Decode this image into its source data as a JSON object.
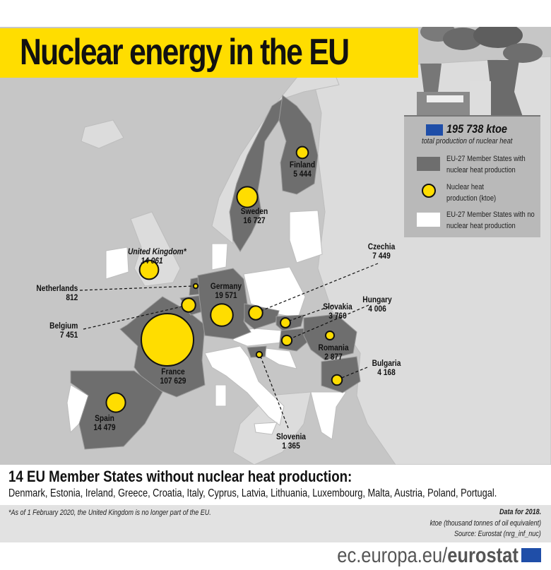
{
  "title": "Nuclear energy in the EU",
  "legend": {
    "total": "195 738 ktoe",
    "total_caption": "total production of nuclear heat",
    "items": [
      {
        "label": "EU-27 Member States with nuclear heat production",
        "color": "#6e6e6e"
      },
      {
        "label": "Nuclear heat production (ktoe)",
        "color": "#ffdd00"
      },
      {
        "label": "EU-27 Member States with no nuclear heat production",
        "color": "#ffffff"
      }
    ]
  },
  "countries": [
    {
      "name": "Finland",
      "value": "5 444",
      "ktoe": 5444
    },
    {
      "name": "Sweden",
      "value": "16 727",
      "ktoe": 16727
    },
    {
      "name": "United Kingdom*",
      "value": "14 061",
      "ktoe": 14061
    },
    {
      "name": "Netherlands",
      "value": "812",
      "ktoe": 812
    },
    {
      "name": "Belgium",
      "value": "7 451",
      "ktoe": 7451
    },
    {
      "name": "Germany",
      "value": "19 571",
      "ktoe": 19571
    },
    {
      "name": "Czechia",
      "value": "7 449",
      "ktoe": 7449
    },
    {
      "name": "Slovakia",
      "value": "3 760",
      "ktoe": 3760
    },
    {
      "name": "Hungary",
      "value": "4 006",
      "ktoe": 4006
    },
    {
      "name": "Romania",
      "value": "2 877",
      "ktoe": 2877
    },
    {
      "name": "Slovenia",
      "value": "1 365",
      "ktoe": 1365
    },
    {
      "name": "Bulgaria",
      "value": "4 168",
      "ktoe": 4168
    },
    {
      "name": "France",
      "value": "107 629",
      "ktoe": 107629
    },
    {
      "name": "Spain",
      "value": "14 479",
      "ktoe": 14479
    }
  ],
  "without": {
    "title": "14 EU Member States without nuclear heat production:",
    "list": "Denmark, Estonia, Ireland, Greece, Croatia, Italy, Cyprus, Latvia, Lithuania, Luxembourg, Malta, Austria, Poland, Portugal."
  },
  "notes": {
    "uk": "*As of 1 February 2020, the United Kingdom is no longer part of the EU.",
    "year": "Data for 2018.",
    "unit": "ktoe (thousand tonnes of oil equivalent)",
    "source": "Source: Eurostat (nrg_inf_nuc)"
  },
  "footer": {
    "domain": "ec.europa.eu/",
    "brand": "eurostat"
  },
  "colors": {
    "accent": "#ffdd00",
    "nuclear": "#6e6e6e",
    "no_nuclear": "#ffffff",
    "non_eu": "#dcdcdc",
    "sea": "#c6c6c6"
  }
}
